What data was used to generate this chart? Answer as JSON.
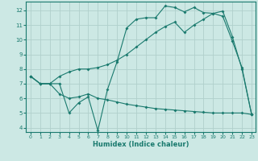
{
  "xlabel": "Humidex (Indice chaleur)",
  "bg_color": "#cce8e4",
  "grid_color": "#b0d0cc",
  "line_color": "#1a7a6e",
  "xlim_min": -0.5,
  "xlim_max": 23.4,
  "ylim_min": 3.7,
  "ylim_max": 12.6,
  "yticks": [
    4,
    5,
    6,
    7,
    8,
    9,
    10,
    11,
    12
  ],
  "xticks": [
    0,
    1,
    2,
    3,
    4,
    5,
    6,
    7,
    8,
    9,
    10,
    11,
    12,
    13,
    14,
    15,
    16,
    17,
    18,
    19,
    20,
    21,
    22,
    23
  ],
  "s1_x": [
    0,
    1,
    2,
    3,
    4,
    5,
    6,
    7,
    8,
    9,
    10,
    11,
    12,
    13,
    14,
    15,
    16,
    17,
    18,
    19,
    20,
    21,
    22,
    23
  ],
  "s1_y": [
    7.5,
    7.0,
    7.0,
    6.3,
    6.0,
    6.1,
    6.3,
    6.0,
    5.9,
    5.75,
    5.6,
    5.5,
    5.4,
    5.3,
    5.25,
    5.2,
    5.15,
    5.1,
    5.05,
    5.0,
    5.0,
    5.0,
    5.0,
    4.9
  ],
  "s2_x": [
    0,
    1,
    2,
    3,
    4,
    5,
    6,
    7,
    8,
    9,
    10,
    11,
    12,
    13,
    14,
    15,
    16,
    17,
    18,
    19,
    20,
    21,
    22,
    23
  ],
  "s2_y": [
    7.5,
    7.0,
    7.0,
    7.0,
    5.0,
    5.7,
    6.1,
    3.8,
    6.6,
    8.5,
    10.8,
    11.4,
    11.5,
    11.5,
    12.3,
    12.2,
    11.9,
    12.2,
    11.85,
    11.8,
    11.6,
    9.9,
    8.1,
    4.9
  ],
  "s3_x": [
    0,
    1,
    2,
    3,
    4,
    5,
    6,
    7,
    8,
    9,
    10,
    11,
    12,
    13,
    14,
    15,
    16,
    17,
    18,
    19,
    20,
    21,
    22,
    23
  ],
  "s3_y": [
    7.5,
    7.0,
    7.0,
    7.5,
    7.8,
    8.0,
    8.0,
    8.1,
    8.3,
    8.6,
    9.0,
    9.5,
    10.0,
    10.5,
    10.9,
    11.2,
    10.5,
    11.0,
    11.4,
    11.8,
    11.95,
    10.2,
    8.0,
    4.9
  ]
}
